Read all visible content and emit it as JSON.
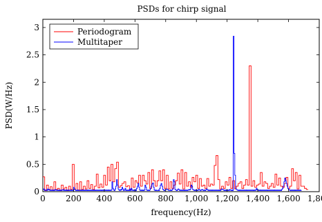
{
  "chart_data": {
    "type": "line",
    "title": "PSDs for chirp signal",
    "xlabel": "frequency(Hz)",
    "ylabel": "PSD(W/Hz)",
    "xlim": [
      0,
      1800
    ],
    "ylim": [
      0,
      3.15
    ],
    "xticks": [
      0,
      200,
      400,
      600,
      800,
      1000,
      1200,
      1400,
      1600,
      1800
    ],
    "xtick_labels": [
      "0",
      "200",
      "400",
      "600",
      "800",
      "1,000",
      "1,200",
      "1,400",
      "1,600",
      "1,800"
    ],
    "yticks": [
      0,
      0.5,
      1,
      1.5,
      2,
      2.5,
      3
    ],
    "ytick_labels": [
      "0",
      "0.5",
      "1",
      "1.5",
      "2",
      "2.5",
      "3"
    ],
    "legend_position": "top-left",
    "series": [
      {
        "name": "Periodogram",
        "color": "#ff0000",
        "step": 12,
        "values": [
          0.27,
          0.02,
          0.12,
          0.04,
          0.09,
          0.03,
          0.18,
          0.04,
          0.06,
          0.02,
          0.12,
          0.05,
          0.08,
          0.02,
          0.1,
          0.04,
          0.5,
          0.05,
          0.15,
          0.03,
          0.18,
          0.04,
          0.1,
          0.05,
          0.2,
          0.06,
          0.13,
          0.04,
          0.1,
          0.32,
          0.07,
          0.14,
          0.08,
          0.3,
          0.12,
          0.45,
          0.2,
          0.5,
          0.18,
          0.42,
          0.54,
          0.08,
          0.11,
          0.15,
          0.18,
          0.09,
          0.11,
          0.04,
          0.25,
          0.08,
          0.2,
          0.16,
          0.3,
          0.1,
          0.3,
          0.2,
          0.14,
          0.35,
          0.06,
          0.4,
          0.2,
          0.1,
          0.2,
          0.38,
          0.2,
          0.4,
          0.06,
          0.3,
          0.05,
          0.18,
          0.06,
          0.12,
          0.2,
          0.34,
          0.14,
          0.4,
          0.05,
          0.35,
          0.1,
          0.18,
          0.08,
          0.26,
          0.18,
          0.3,
          0.06,
          0.24,
          0.1,
          0.12,
          0.06,
          0.24,
          0.1,
          0.14,
          0.12,
          0.48,
          0.66,
          0.22,
          0.05,
          0.1,
          0.06,
          0.18,
          0.12,
          0.26,
          0.06,
          0.2,
          0.05,
          0.1,
          0.15,
          0.18,
          0.06,
          0.12,
          0.22,
          0.12,
          2.3,
          0.1,
          0.2,
          0.08,
          0.12,
          0.14,
          0.35,
          0.1,
          0.18,
          0.15,
          0.06,
          0.1,
          0.15,
          0.08,
          0.32,
          0.12,
          0.25,
          0.1,
          0.08,
          0.15,
          0.26,
          0.06,
          0.1,
          0.42,
          0.2,
          0.35,
          0.05,
          0.3,
          0.1,
          0.1,
          0.06,
          0.04
        ]
      },
      {
        "name": "Multitaper",
        "color": "#0000ff",
        "step": 5,
        "values": [
          0.04,
          0.05,
          0.02,
          0.03,
          0.03,
          0.02,
          0.05,
          0.03,
          0.04,
          0.02,
          0.03,
          0.02,
          0.03,
          0.02,
          0.03,
          0.02,
          0.04,
          0.03,
          0.02,
          0.03,
          0.02,
          0.03,
          0.02,
          0.03,
          0.02,
          0.03,
          0.04,
          0.02,
          0.03,
          0.02,
          0.03,
          0.02,
          0.03,
          0.02,
          0.03,
          0.02,
          0.03,
          0.02,
          0.03,
          0.02,
          0.08,
          0.04,
          0.03,
          0.02,
          0.03,
          0.02,
          0.03,
          0.02,
          0.02,
          0.03,
          0.02,
          0.03,
          0.02,
          0.03,
          0.02,
          0.03,
          0.02,
          0.03,
          0.02,
          0.03,
          0.02,
          0.03,
          0.02,
          0.03,
          0.02,
          0.03,
          0.02,
          0.03,
          0.02,
          0.03,
          0.02,
          0.03,
          0.02,
          0.03,
          0.02,
          0.03,
          0.02,
          0.03,
          0.02,
          0.03,
          0.02,
          0.03,
          0.02,
          0.03,
          0.02,
          0.03,
          0.02,
          0.03,
          0.02,
          0.03,
          0.18,
          0.06,
          0.03,
          0.02,
          0.05,
          0.1,
          0.22,
          0.12,
          0.05,
          0.03,
          0.02,
          0.04,
          0.03,
          0.08,
          0.05,
          0.02,
          0.03,
          0.06,
          0.02,
          0.03,
          0.02,
          0.03,
          0.02,
          0.05,
          0.02,
          0.06,
          0.03,
          0.02,
          0.03,
          0.02,
          0.03,
          0.02,
          0.06,
          0.1,
          0.15,
          0.08,
          0.03,
          0.02,
          0.03,
          0.02,
          0.03,
          0.02,
          0.03,
          0.12,
          0.08,
          0.03,
          0.02,
          0.03,
          0.02,
          0.03,
          0.06,
          0.1,
          0.14,
          0.16,
          0.08,
          0.03,
          0.02,
          0.03,
          0.02,
          0.02,
          0.03,
          0.02,
          0.06,
          0.12,
          0.15,
          0.1,
          0.04,
          0.03,
          0.02,
          0.03,
          0.04,
          0.05,
          0.04,
          0.03,
          0.02,
          0.02,
          0.03,
          0.02,
          0.03,
          0.05,
          0.22,
          0.18,
          0.04,
          0.03,
          0.02,
          0.03,
          0.05,
          0.04,
          0.02,
          0.03,
          0.02,
          0.03,
          0.02,
          0.03,
          0.02,
          0.03,
          0.02,
          0.03,
          0.02,
          0.03,
          0.04,
          0.03,
          0.05,
          0.12,
          0.1,
          0.04,
          0.03,
          0.02,
          0.03,
          0.02,
          0.03,
          0.02,
          0.03,
          0.04,
          0.03,
          0.02,
          0.03,
          0.04,
          0.03,
          0.02,
          0.03,
          0.02,
          0.03,
          0.05,
          0.04,
          0.02,
          0.03,
          0.02,
          0.03,
          0.02,
          0.03,
          0.02,
          0.03,
          0.02,
          0.03,
          0.02,
          0.03,
          0.02,
          0.03,
          0.02,
          0.03,
          0.02,
          0.04,
          0.05,
          0.04,
          0.03,
          0.02,
          0.03,
          0.02,
          0.03,
          0.02,
          0.03,
          0.02,
          0.04,
          0.03,
          0.02,
          0.03,
          0.02,
          2.84,
          0.7,
          0.3,
          0.05,
          0.04,
          0.03,
          0.02,
          0.03,
          0.02,
          0.03,
          0.02,
          0.03,
          0.02,
          0.03,
          0.02,
          0.03,
          0.02,
          0.03,
          0.02,
          0.03,
          0.02,
          0.03,
          0.02,
          0.03,
          0.02,
          0.03,
          0.02,
          0.03,
          0.02,
          0.03,
          0.06,
          0.03,
          0.02,
          0.03,
          0.02,
          0.03,
          0.02,
          0.03,
          0.02,
          0.03,
          0.02,
          0.03,
          0.02,
          0.03,
          0.02,
          0.03,
          0.02,
          0.03,
          0.02,
          0.03,
          0.02,
          0.03,
          0.02,
          0.03,
          0.02,
          0.03,
          0.02,
          0.03,
          0.02,
          0.03,
          0.02,
          0.03,
          0.02,
          0.04,
          0.06,
          0.1,
          0.18,
          0.25,
          0.2,
          0.15,
          0.1,
          0.06,
          0.04,
          0.03,
          0.02,
          0.03,
          0.02,
          0.03,
          0.02,
          0.03,
          0.02,
          0.03,
          0.02,
          0.03,
          0.02,
          0.03,
          0.02,
          0.03,
          0.02
        ]
      }
    ]
  }
}
